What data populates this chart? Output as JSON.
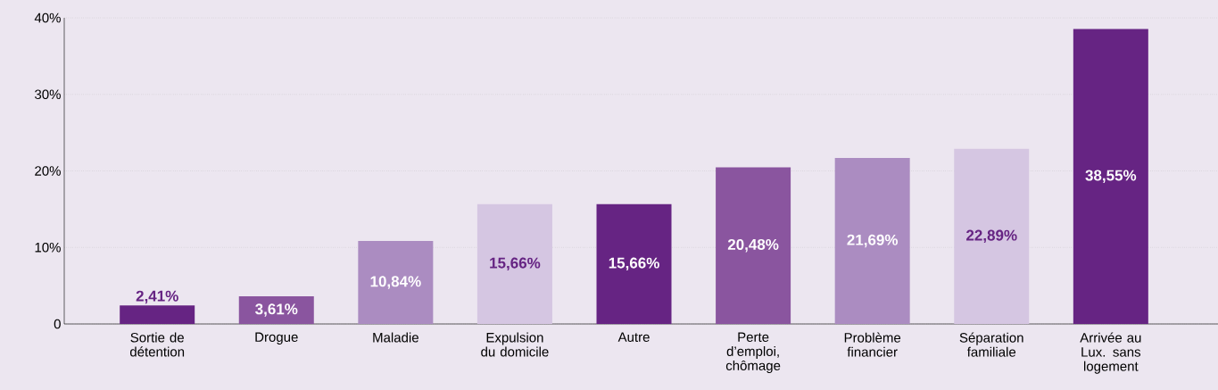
{
  "chart_data": {
    "type": "bar",
    "categories": [
      "Sortie de détention",
      "Drogue",
      "Maladie",
      "Expulsion du domicile",
      "Autre",
      "Perte d’emploi, chômage",
      "Problème financier",
      "Séparation familiale",
      "Arrivée au Lux. sans logement"
    ],
    "values": [
      2.41,
      3.61,
      10.84,
      15.66,
      15.66,
      20.48,
      21.69,
      22.89,
      38.55
    ],
    "colors": [
      "#662483",
      "#8a559f",
      "#ab8cc1",
      "#d5c6e2",
      "#662483",
      "#8a559f",
      "#ab8cc1",
      "#d5c6e2",
      "#662483"
    ],
    "value_labels": [
      "2,41%",
      "3,61%",
      "10,84%",
      "15,66%",
      "15,66%",
      "20,48%",
      "21,69%",
      "22,89%",
      "38,55%"
    ],
    "ylim": [
      0,
      40
    ],
    "yticks": [
      0,
      {
        "value": 10,
        "label": "10%"
      },
      {
        "value": 20,
        "label": "20%"
      },
      {
        "value": 30,
        "label": "30%"
      },
      {
        "value": 40,
        "label": "40%"
      }
    ],
    "grid": "y"
  }
}
